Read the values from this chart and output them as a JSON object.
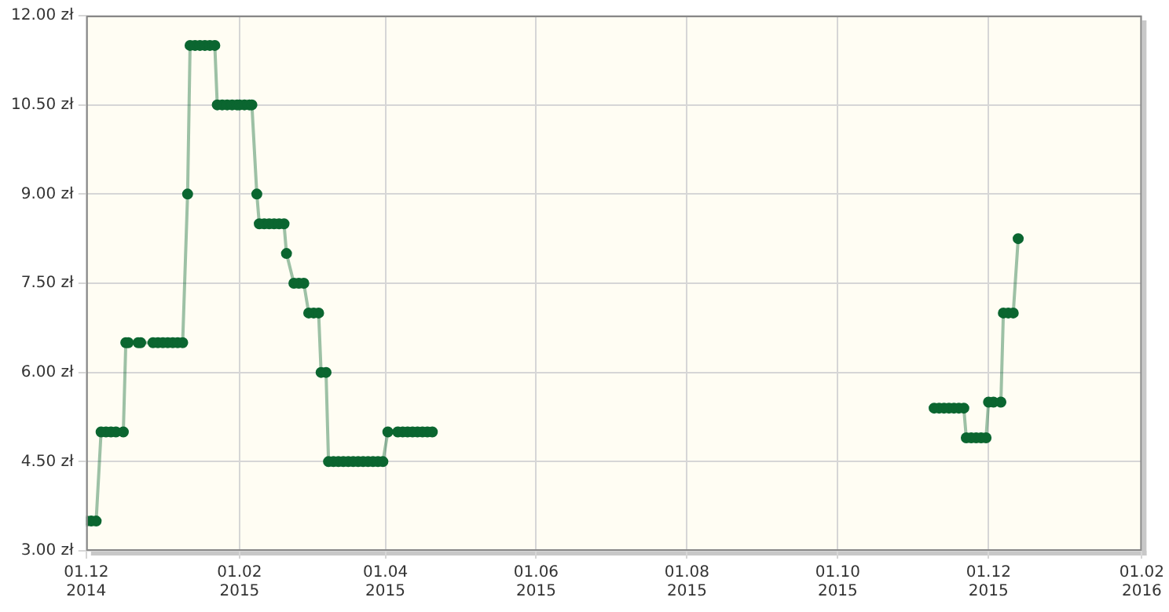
{
  "chart_data": {
    "type": "line",
    "marker": "circle",
    "grid": true,
    "legend": false,
    "xlim": [
      "2014-12-01",
      "2016-02-01"
    ],
    "xticks": [
      {
        "value": "2014-12-01",
        "label": "01.12 2014"
      },
      {
        "value": "2015-02-01",
        "label": "01.02 2015"
      },
      {
        "value": "2015-04-01",
        "label": "01.04 2015"
      },
      {
        "value": "2015-06-01",
        "label": "01.06 2015"
      },
      {
        "value": "2015-08-01",
        "label": "01.08 2015"
      },
      {
        "value": "2015-10-01",
        "label": "01.10 2015"
      },
      {
        "value": "2015-12-01",
        "label": "01.12 2015"
      },
      {
        "value": "2016-02-01",
        "label": "01.02 2016"
      }
    ],
    "ylim": [
      3,
      12
    ],
    "yticks": [
      {
        "value": 3,
        "label": "3.00 zł"
      },
      {
        "value": 4.5,
        "label": "4.50 zł"
      },
      {
        "value": 6,
        "label": "6.00 zł"
      },
      {
        "value": 7.5,
        "label": "7.50 zł"
      },
      {
        "value": 9,
        "label": "9.00 zł"
      },
      {
        "value": 10.5,
        "label": "10.50 zł"
      },
      {
        "value": 12,
        "label": "12.00 zł"
      }
    ],
    "series": [
      {
        "color": "#0b6630",
        "x": [
          "2014-12-01",
          "2014-12-03",
          "2014-12-05",
          "2014-12-07",
          "2014-12-09",
          "2014-12-11",
          "2014-12-13",
          "2014-12-16",
          "2014-12-17",
          "2014-12-18",
          "2014-12-22",
          "2014-12-23",
          "2014-12-28",
          "2014-12-30",
          "2015-01-01",
          "2015-01-03",
          "2015-01-05",
          "2015-01-07",
          "2015-01-09",
          "2015-01-11",
          "2015-01-12",
          "2015-01-14",
          "2015-01-16",
          "2015-01-18",
          "2015-01-20",
          "2015-01-22",
          "2015-01-23",
          "2015-01-25",
          "2015-01-27",
          "2015-01-29",
          "2015-01-31",
          "2015-02-01",
          "2015-02-03",
          "2015-02-05",
          "2015-02-06",
          "2015-02-08",
          "2015-02-09",
          "2015-02-11",
          "2015-02-13",
          "2015-02-15",
          "2015-02-17",
          "2015-02-19",
          "2015-02-20",
          "2015-02-23",
          "2015-02-25",
          "2015-02-27",
          "2015-03-01",
          "2015-03-03",
          "2015-03-05",
          "2015-03-06",
          "2015-03-08",
          "2015-03-09",
          "2015-03-11",
          "2015-03-13",
          "2015-03-15",
          "2015-03-17",
          "2015-03-19",
          "2015-03-21",
          "2015-03-23",
          "2015-03-25",
          "2015-03-27",
          "2015-03-29",
          "2015-03-31",
          "2015-04-02",
          "2015-04-06",
          "2015-04-08",
          "2015-04-10",
          "2015-04-12",
          "2015-04-14",
          "2015-04-16",
          "2015-04-18",
          "2015-04-20"
        ],
        "values": [
          3.5,
          3.5,
          3.5,
          5,
          5,
          5,
          5,
          5,
          6.5,
          6.5,
          6.5,
          6.5,
          6.5,
          6.5,
          6.5,
          6.5,
          6.5,
          6.5,
          6.5,
          9,
          11.5,
          11.5,
          11.5,
          11.5,
          11.5,
          11.5,
          10.5,
          10.5,
          10.5,
          10.5,
          10.5,
          10.5,
          10.5,
          10.5,
          10.5,
          9,
          8.5,
          8.5,
          8.5,
          8.5,
          8.5,
          8.5,
          8,
          7.5,
          7.5,
          7.5,
          7,
          7,
          7,
          6,
          6,
          4.5,
          4.5,
          4.5,
          4.5,
          4.5,
          4.5,
          4.5,
          4.5,
          4.5,
          4.5,
          4.5,
          4.5,
          5,
          5,
          5,
          5,
          5,
          5,
          5,
          5,
          5
        ]
      },
      {
        "color": "#0b6630",
        "x": [
          "2015-11-09",
          "2015-11-11",
          "2015-11-13",
          "2015-11-15",
          "2015-11-17",
          "2015-11-19",
          "2015-11-21",
          "2015-11-22",
          "2015-11-24",
          "2015-11-26",
          "2015-11-28",
          "2015-11-30",
          "2015-12-01",
          "2015-12-03",
          "2015-12-06",
          "2015-12-07",
          "2015-12-09",
          "2015-12-11",
          "2015-12-13"
        ],
        "values": [
          5.4,
          5.4,
          5.4,
          5.4,
          5.4,
          5.4,
          5.4,
          4.9,
          4.9,
          4.9,
          4.9,
          4.9,
          5.5,
          5.5,
          5.5,
          7,
          7,
          7,
          8.25
        ]
      }
    ]
  }
}
